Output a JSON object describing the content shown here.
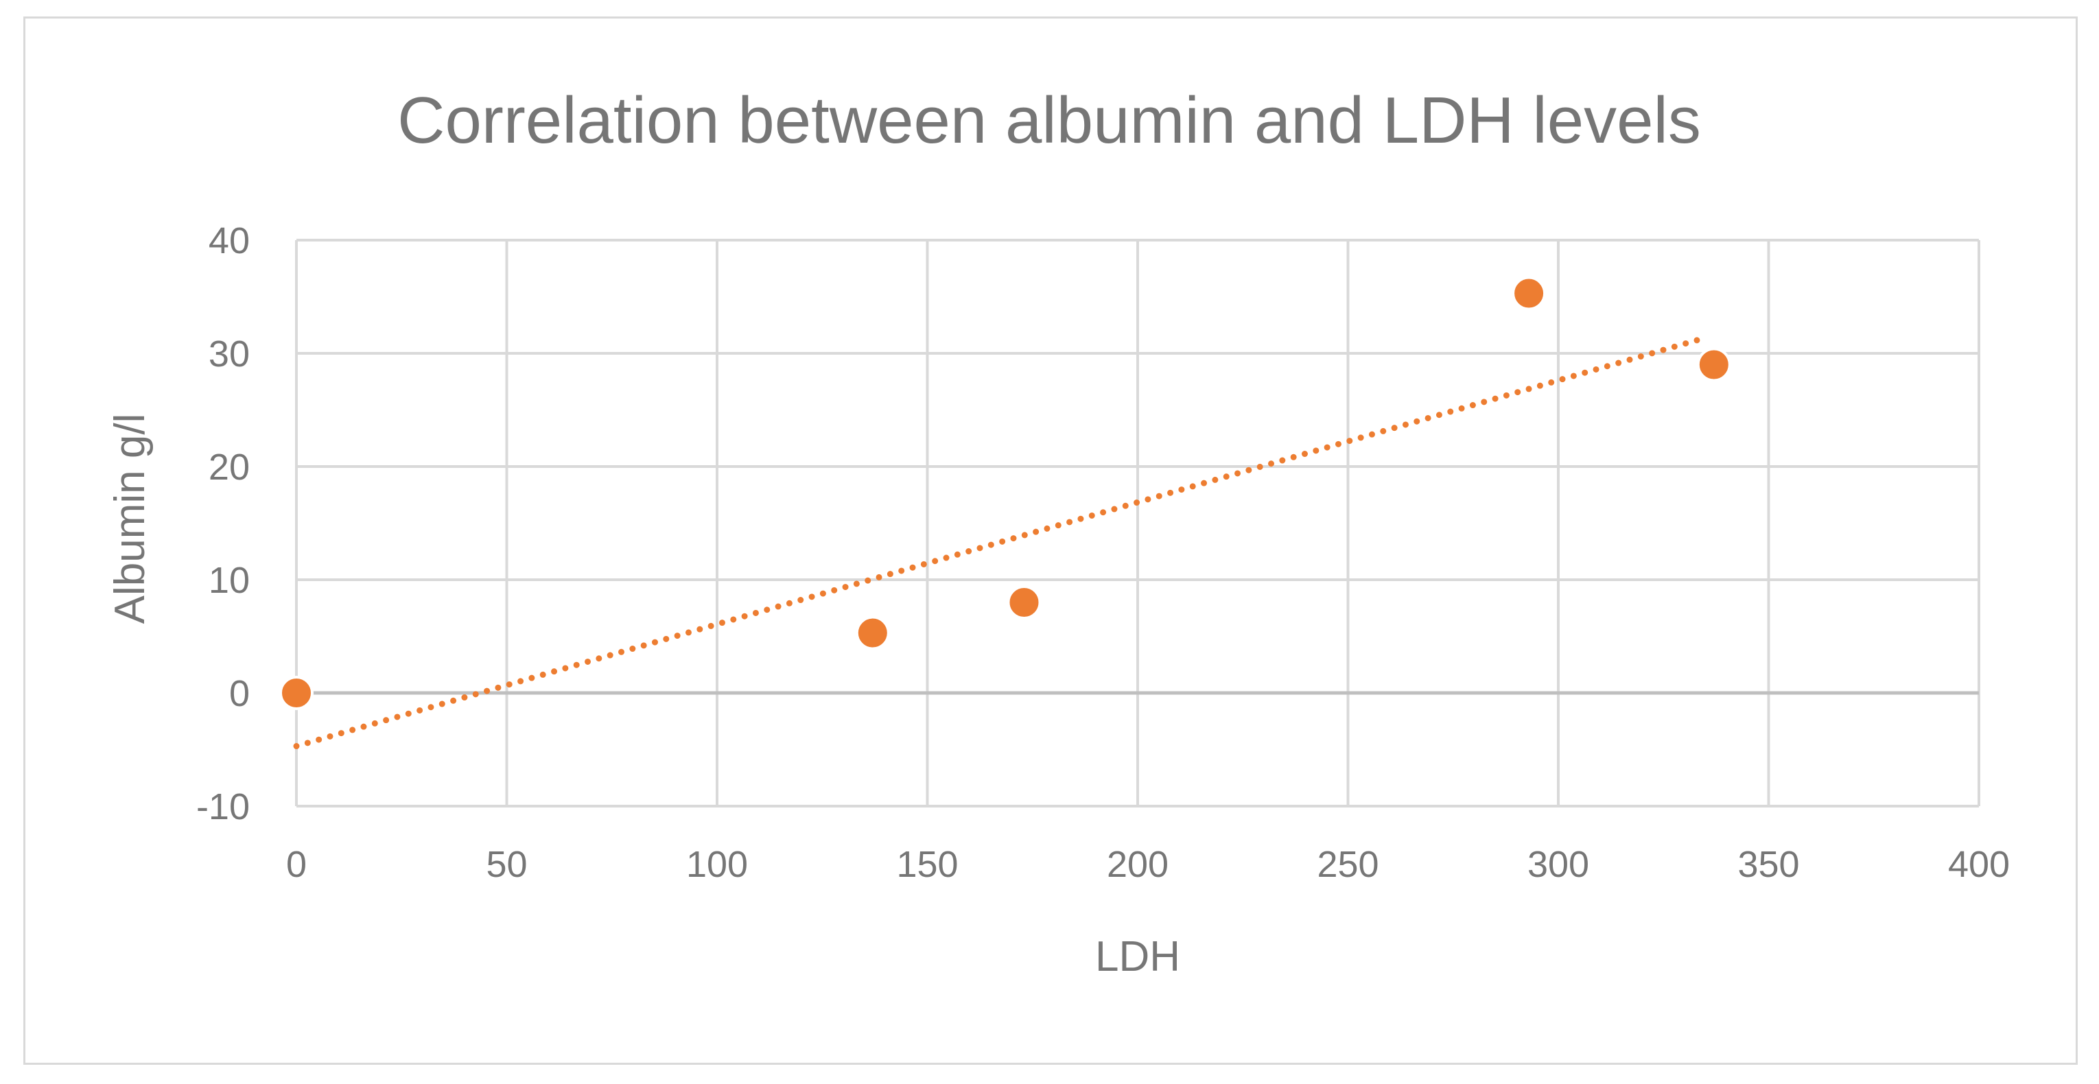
{
  "chart_data": {
    "type": "scatter",
    "title": "Correlation between albumin and LDH levels",
    "xlabel": "LDH",
    "ylabel": "Albumin g/l",
    "xlim": [
      0,
      400
    ],
    "ylim": [
      -10,
      40
    ],
    "x_ticks": [
      "0",
      "50",
      "100",
      "150",
      "200",
      "250",
      "300",
      "350",
      "400"
    ],
    "y_ticks": [
      "40",
      "30",
      "20",
      "10",
      "0",
      "-10"
    ],
    "grid": true,
    "legend": "none",
    "series": [
      {
        "x": [
          0,
          137,
          173,
          293,
          337
        ],
        "y": [
          0,
          5.3,
          8.0,
          35.3,
          29.0
        ],
        "color": "#ED7D31"
      }
    ],
    "trendline": {
      "type": "linear",
      "style": "dotted",
      "color": "#ED7D31",
      "x_range": [
        0,
        334
      ],
      "slope": 0.1077,
      "intercept": -4.7
    },
    "colors": {
      "gridline": "#d9d9d9",
      "text": "#767676",
      "frame": "#d9d9d9"
    }
  }
}
